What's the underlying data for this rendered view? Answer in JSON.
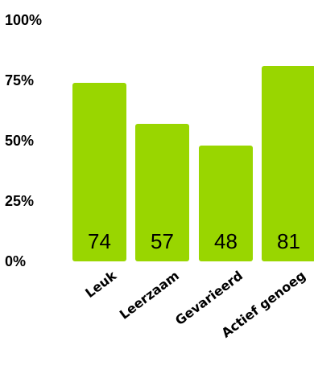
{
  "chart_data": {
    "type": "bar",
    "categories": [
      "Leuk",
      "Leerzaam",
      "Gevarieerd",
      "Actief genoeg"
    ],
    "values": [
      74,
      57,
      48,
      81
    ],
    "data_labels": [
      "74",
      "57",
      "48",
      "81"
    ],
    "y_ticks": [
      "0%",
      "25%",
      "50%",
      "75%",
      "100%"
    ],
    "ylim": [
      0,
      100
    ],
    "grid": false,
    "legend": "none",
    "bar_color": "#99d600",
    "text_color": "#000000"
  }
}
